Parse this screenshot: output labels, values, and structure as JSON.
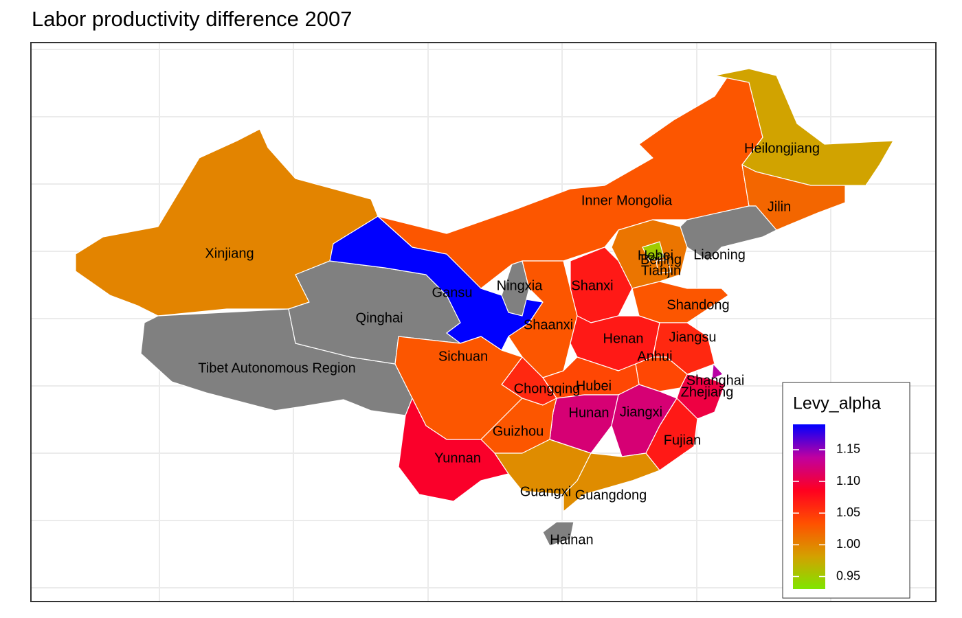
{
  "map": {
    "title": "Labor productivity difference 2007",
    "legend": {
      "title": "Levy_alpha",
      "lim": [
        0.93,
        1.19
      ],
      "colors": [
        "#7fe600",
        "#d4a000",
        "#ff5000",
        "#ff0020",
        "#c000a0",
        "#0000ff"
      ],
      "missing_color": "#808080",
      "ticks": [
        0.95,
        {
          "value": 1,
          "label": "1.00"
        },
        1.05,
        {
          "value": 1.1,
          "label": "1.10"
        },
        1.15
      ]
    },
    "regions": [
      {
        "name": "Xinjiang",
        "value": 1.0
      },
      {
        "name": "Tibet Autonomous Region",
        "value": null
      },
      {
        "name": "Qinghai",
        "value": null
      },
      {
        "name": "Gansu",
        "value": 1.19
      },
      {
        "name": "Ningxia",
        "value": null
      },
      {
        "name": "Inner Mongolia",
        "value": 1.03
      },
      {
        "name": "Heilongjiang",
        "value": 0.98
      },
      {
        "name": "Jilin",
        "value": 1.02
      },
      {
        "name": "Liaoning",
        "value": null
      },
      {
        "name": "Hebei",
        "value": 1.01
      },
      {
        "name": "Beijing",
        "value": 0.95
      },
      {
        "name": "Tianjin",
        "value": 1.01
      },
      {
        "name": "Shanxi",
        "value": 1.07
      },
      {
        "name": "Shaanxi",
        "value": 1.03
      },
      {
        "name": "Shandong",
        "value": 1.03
      },
      {
        "name": "Henan",
        "value": 1.07
      },
      {
        "name": "Jiangsu",
        "value": 1.06
      },
      {
        "name": "Anhui",
        "value": 1.04
      },
      {
        "name": "Shanghai",
        "value": 1.14
      },
      {
        "name": "Zhejiang",
        "value": 1.1
      },
      {
        "name": "Hubei",
        "value": 1.04
      },
      {
        "name": "Chongqing",
        "value": 1.06
      },
      {
        "name": "Sichuan",
        "value": 1.03
      },
      {
        "name": "Hunan",
        "value": 1.12
      },
      {
        "name": "Jiangxi",
        "value": 1.12
      },
      {
        "name": "Fujian",
        "value": 1.07
      },
      {
        "name": "Guizhou",
        "value": 1.03
      },
      {
        "name": "Yunnan",
        "value": 1.09
      },
      {
        "name": "Guangxi",
        "value": 0.995
      },
      {
        "name": "Guangdong",
        "value": 0.995
      },
      {
        "name": "Hainan",
        "value": null
      }
    ]
  }
}
